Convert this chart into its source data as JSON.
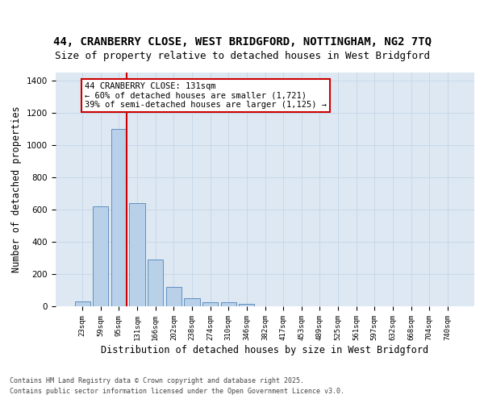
{
  "title1": "44, CRANBERRY CLOSE, WEST BRIDGFORD, NOTTINGHAM, NG2 7TQ",
  "title2": "Size of property relative to detached houses in West Bridgford",
  "xlabel": "Distribution of detached houses by size in West Bridgford",
  "ylabel": "Number of detached properties",
  "categories": [
    "23sqm",
    "59sqm",
    "95sqm",
    "131sqm",
    "166sqm",
    "202sqm",
    "238sqm",
    "274sqm",
    "310sqm",
    "346sqm",
    "382sqm",
    "417sqm",
    "453sqm",
    "489sqm",
    "525sqm",
    "561sqm",
    "597sqm",
    "632sqm",
    "668sqm",
    "704sqm",
    "740sqm"
  ],
  "values": [
    30,
    620,
    1100,
    640,
    290,
    120,
    50,
    25,
    25,
    15,
    0,
    0,
    0,
    0,
    0,
    0,
    0,
    0,
    0,
    0,
    0
  ],
  "bar_color": "#b8d0e8",
  "bar_edge_color": "#6090c0",
  "red_line_index": 2,
  "annotation_text": "44 CRANBERRY CLOSE: 131sqm\n← 60% of detached houses are smaller (1,721)\n39% of semi-detached houses are larger (1,125) →",
  "annotation_box_color": "#ffffff",
  "annotation_box_edge": "#cc0000",
  "red_line_color": "#cc0000",
  "ylim": [
    0,
    1450
  ],
  "yticks": [
    0,
    200,
    400,
    600,
    800,
    1000,
    1200,
    1400
  ],
  "grid_color": "#c8d8e8",
  "background_color": "#dde8f2",
  "fig_background": "#ffffff",
  "footer_text1": "Contains HM Land Registry data © Crown copyright and database right 2025.",
  "footer_text2": "Contains public sector information licensed under the Open Government Licence v3.0.",
  "title1_fontsize": 10,
  "title2_fontsize": 9,
  "xlabel_fontsize": 8.5,
  "ylabel_fontsize": 8.5,
  "annot_fontsize": 7.5
}
